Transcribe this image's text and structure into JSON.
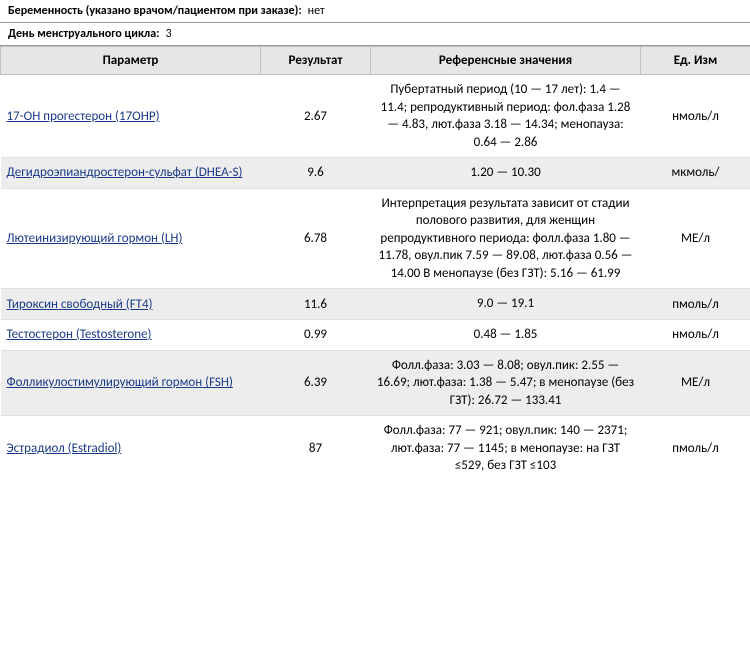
{
  "info": {
    "pregnancy_label": "Беременность (указано врачом/пациентом при заказе):",
    "pregnancy_value": "нет",
    "cycle_day_label": "День менструального цикла:",
    "cycle_day_value": "3"
  },
  "columns": {
    "param": "Параметр",
    "result": "Результат",
    "ref": "Референсные значения",
    "unit": "Ед. Изм"
  },
  "rows": [
    {
      "param": "17-ОН прогестерон (17ОНР)",
      "result": "2.67",
      "ref": "Пубертатный период (10 — 17 лет): 1.4 — 11.4; репродуктивный период: фол.фаза 1.28 — 4.83, лют.фаза 3.18 — 14.34; менопауза: 0.64 — 2.86",
      "unit": "нмоль/л",
      "shade": false
    },
    {
      "param": "Дегидроэпиандростерон-сульфат (DHEA-S)",
      "result": "9.6",
      "ref": "1.20 — 10.30",
      "unit": "мкмоль/",
      "shade": true
    },
    {
      "param": "Лютеинизирующий гормон (LH)",
      "result": "6.78",
      "ref": "Интерпретация результата зависит от стадии полового развития, для женщин репродуктивного периода: фолл.фаза 1.80 — 11.78, овул.пик 7.59 — 89.08, лют.фаза 0.56 — 14.00 В менопаузе (без ГЗТ): 5.16 — 61.99",
      "unit": "МЕ/л",
      "shade": false
    },
    {
      "param": "Тироксин свободный (FT4)",
      "result": "11.6",
      "ref": "9.0 — 19.1",
      "unit": "пмоль/л",
      "shade": true
    },
    {
      "param": "Тестостерон (Testosterone)",
      "result": "0.99",
      "ref": "0.48 — 1.85",
      "unit": "нмоль/л",
      "shade": false
    },
    {
      "param": "Фолликулостимулирующий гормон (FSH)",
      "result": "6.39",
      "ref": "Фолл.фаза: 3.03 — 8.08; овул.пик: 2.55 — 16.69; лют.фаза: 1.38 — 5.47; в менопаузе (без ГЗТ): 26.72 — 133.41",
      "unit": "МЕ/л",
      "shade": true
    },
    {
      "param": "Эстрадиол (Estradiol)",
      "result": "87",
      "ref": "Фолл.фаза: 77 — 921; овул.пик: 140 — 2371; лют.фаза: 77 — 1145; в менопаузе: на ГЗТ ≤529, без ГЗТ ≤103",
      "unit": "пмоль/л",
      "shade": false
    }
  ]
}
